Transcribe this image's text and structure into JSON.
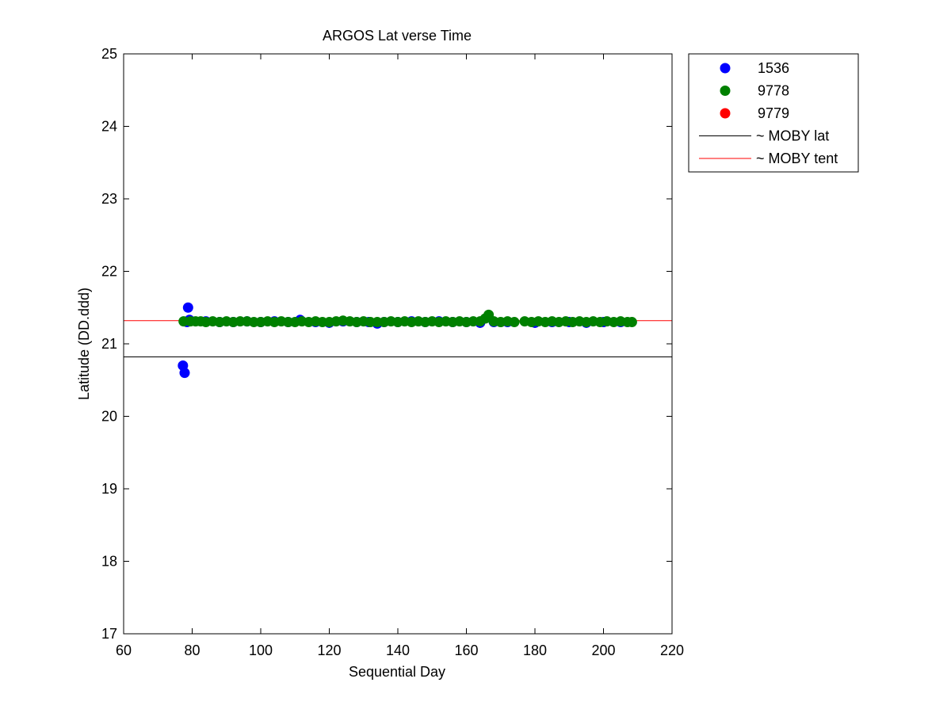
{
  "chart_data": {
    "type": "scatter",
    "title": "ARGOS Lat verse Time",
    "xlabel": "Sequential Day",
    "ylabel": "Latitude (DD.ddd)",
    "xlim": [
      60,
      220
    ],
    "ylim": [
      17,
      25
    ],
    "xticks": [
      60,
      80,
      100,
      120,
      140,
      160,
      180,
      200,
      220
    ],
    "yticks": [
      17,
      18,
      19,
      20,
      21,
      22,
      23,
      24,
      25
    ],
    "grid": false,
    "legend_position": "outside-top-right",
    "series": [
      {
        "name": "1536",
        "color": "#0000ff",
        "points": [
          [
            77.3,
            20.7
          ],
          [
            77.8,
            20.6
          ],
          [
            78.5,
            21.3
          ],
          [
            78.8,
            21.5
          ],
          [
            79.2,
            21.33
          ],
          [
            84,
            21.31
          ],
          [
            88,
            21.3
          ],
          [
            92,
            21.3
          ],
          [
            96,
            21.31
          ],
          [
            100,
            21.3
          ],
          [
            104,
            21.31
          ],
          [
            108,
            21.3
          ],
          [
            111.5,
            21.33
          ],
          [
            116,
            21.3
          ],
          [
            120,
            21.29
          ],
          [
            124,
            21.31
          ],
          [
            128,
            21.3
          ],
          [
            131.5,
            21.3
          ],
          [
            134,
            21.28
          ],
          [
            136,
            21.3
          ],
          [
            140,
            21.3
          ],
          [
            144,
            21.31
          ],
          [
            148,
            21.3
          ],
          [
            152,
            21.31
          ],
          [
            156,
            21.3
          ],
          [
            160,
            21.3
          ],
          [
            164,
            21.29
          ],
          [
            168,
            21.3
          ],
          [
            172,
            21.3
          ],
          [
            180,
            21.29
          ],
          [
            185,
            21.3
          ],
          [
            190,
            21.3
          ],
          [
            195,
            21.29
          ],
          [
            200,
            21.3
          ],
          [
            205,
            21.3
          ]
        ]
      },
      {
        "name": "9778",
        "color": "#008000",
        "points": [
          [
            77.5,
            21.31
          ],
          [
            79.5,
            21.31
          ],
          [
            81,
            21.31
          ],
          [
            82.5,
            21.31
          ],
          [
            84,
            21.3
          ],
          [
            86,
            21.31
          ],
          [
            88,
            21.3
          ],
          [
            90,
            21.31
          ],
          [
            92,
            21.3
          ],
          [
            94,
            21.31
          ],
          [
            96,
            21.31
          ],
          [
            98,
            21.3
          ],
          [
            100,
            21.3
          ],
          [
            102,
            21.31
          ],
          [
            104,
            21.3
          ],
          [
            106,
            21.31
          ],
          [
            108,
            21.3
          ],
          [
            110,
            21.3
          ],
          [
            112,
            21.31
          ],
          [
            114,
            21.3
          ],
          [
            116,
            21.31
          ],
          [
            118,
            21.3
          ],
          [
            120,
            21.3
          ],
          [
            122,
            21.31
          ],
          [
            124,
            21.32
          ],
          [
            126,
            21.31
          ],
          [
            128,
            21.3
          ],
          [
            130,
            21.31
          ],
          [
            132,
            21.3
          ],
          [
            134,
            21.3
          ],
          [
            136,
            21.3
          ],
          [
            138,
            21.31
          ],
          [
            140,
            21.3
          ],
          [
            142,
            21.31
          ],
          [
            144,
            21.3
          ],
          [
            146,
            21.31
          ],
          [
            148,
            21.3
          ],
          [
            150,
            21.31
          ],
          [
            152,
            21.3
          ],
          [
            154,
            21.31
          ],
          [
            156,
            21.3
          ],
          [
            158,
            21.31
          ],
          [
            160,
            21.3
          ],
          [
            162,
            21.31
          ],
          [
            164,
            21.31
          ],
          [
            165.5,
            21.35
          ],
          [
            166.5,
            21.4
          ],
          [
            168,
            21.31
          ],
          [
            170,
            21.3
          ],
          [
            172,
            21.31
          ],
          [
            174,
            21.3
          ],
          [
            177,
            21.31
          ],
          [
            179,
            21.3
          ],
          [
            181,
            21.31
          ],
          [
            183,
            21.3
          ],
          [
            185,
            21.31
          ],
          [
            187,
            21.3
          ],
          [
            189,
            21.31
          ],
          [
            191,
            21.3
          ],
          [
            193,
            21.31
          ],
          [
            195,
            21.3
          ],
          [
            197,
            21.31
          ],
          [
            199,
            21.3
          ],
          [
            201,
            21.31
          ],
          [
            203,
            21.3
          ],
          [
            205,
            21.31
          ],
          [
            207,
            21.3
          ],
          [
            208.3,
            21.3
          ]
        ]
      },
      {
        "name": "9779",
        "color": "#ff0000",
        "points": []
      }
    ],
    "reference_lines": [
      {
        "name": "~ MOBY lat",
        "color": "#000000",
        "y": 20.82
      },
      {
        "name": "~ MOBY tent",
        "color": "#ff0000",
        "y": 21.32
      }
    ]
  }
}
